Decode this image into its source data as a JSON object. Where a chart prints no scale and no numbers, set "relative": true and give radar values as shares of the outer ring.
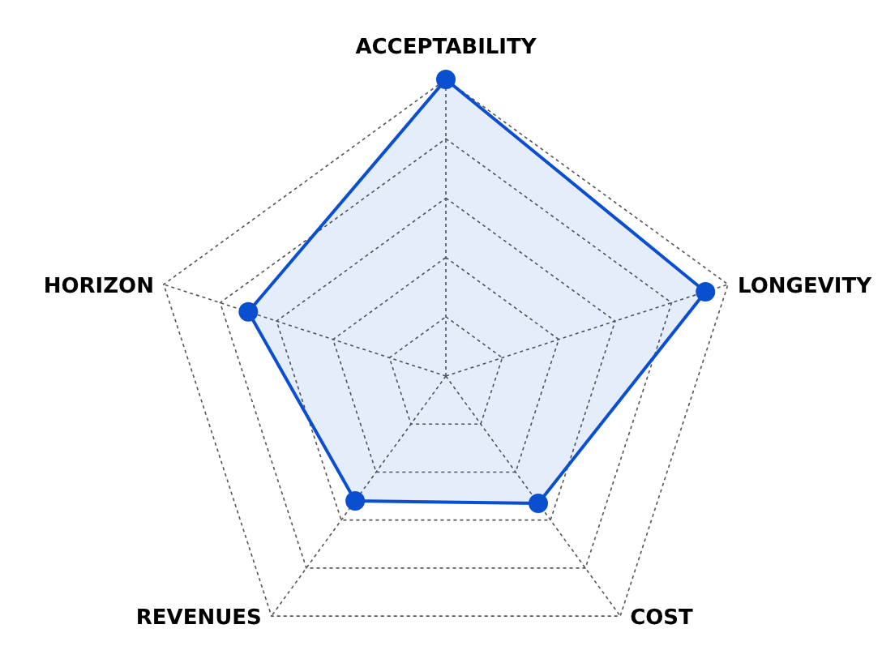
{
  "chart_data": {
    "type": "radar",
    "relative": true,
    "categories": [
      "ACCEPTABILITY",
      "LONGEVITY",
      "COST",
      "REVENUES",
      "HORIZON"
    ],
    "series": [
      {
        "color": "#0a4fd0",
        "values": [
          1,
          0.92,
          0.53,
          0.52,
          0.7
        ]
      }
    ],
    "grid": true,
    "marker": "circle",
    "line_style": "solid"
  }
}
